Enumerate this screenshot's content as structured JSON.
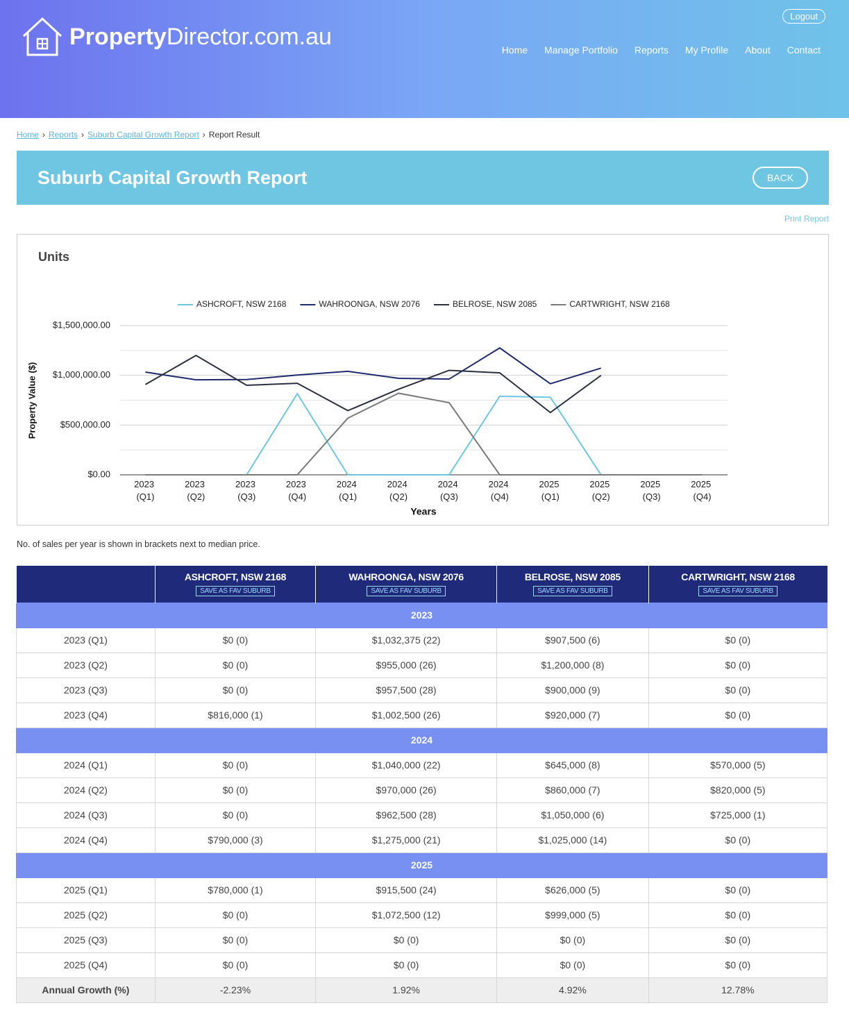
{
  "header": {
    "logo": {
      "bold": "Property",
      "rest": "Director.com.au"
    },
    "logout": "Logout",
    "nav": [
      "Home",
      "Manage Portfolio",
      "Reports",
      "My Profile",
      "About",
      "Contact"
    ]
  },
  "breadcrumb": {
    "links": [
      "Home",
      "Reports",
      "Suburb Capital Growth Report"
    ],
    "current": "Report Result"
  },
  "banner": {
    "title": "Suburb Capital Growth Report",
    "back": "BACK"
  },
  "print": "Print Report",
  "chart_data": {
    "type": "line",
    "title": "Units",
    "xlabel": "Years",
    "ylabel": "Property Value ($)",
    "categories": [
      "2023 (Q1)",
      "2023 (Q2)",
      "2023 (Q3)",
      "2023 (Q4)",
      "2024 (Q1)",
      "2024 (Q2)",
      "2024 (Q3)",
      "2024 (Q4)",
      "2025 (Q1)",
      "2025 (Q2)",
      "2025 (Q3)",
      "2025 (Q4)"
    ],
    "series": [
      {
        "name": "ASHCROFT, NSW 2168",
        "color": "#6ec6e0",
        "values": [
          0,
          0,
          0,
          816000,
          0,
          0,
          0,
          790000,
          780000,
          0,
          0,
          0
        ]
      },
      {
        "name": "WAHROONGA, NSW 2076",
        "color": "#1f2a6e",
        "values": [
          1032375,
          955000,
          957500,
          1002500,
          1040000,
          970000,
          962500,
          1275000,
          915500,
          1072500,
          null,
          null
        ]
      },
      {
        "name": "BELROSE, NSW 2085",
        "color": "#2b303d",
        "values": [
          907500,
          1200000,
          900000,
          920000,
          645000,
          860000,
          1050000,
          1025000,
          626000,
          999000,
          null,
          null
        ]
      },
      {
        "name": "CARTWRIGHT, NSW 2168",
        "color": "#7a7a7a",
        "values": [
          0,
          0,
          0,
          0,
          570000,
          820000,
          725000,
          0,
          0,
          0,
          0,
          0
        ]
      }
    ],
    "ylim": [
      0,
      1500000
    ],
    "yticks": [
      {
        "value": 0,
        "label": "$0.00"
      },
      {
        "value": 500000,
        "label": "$500,000.00"
      },
      {
        "value": 1000000,
        "label": "$1,000,000.00"
      },
      {
        "value": 1500000,
        "label": "$1,500,000.00"
      }
    ],
    "minor_yticks": [
      250000,
      750000,
      1250000
    ],
    "grid": true,
    "legend": "top"
  },
  "note": "No. of sales per year is shown in brackets next to median price.",
  "table": {
    "columns": [
      {
        "name": "ASHCROFT, NSW 2168",
        "button": "SAVE AS FAV SUBURB"
      },
      {
        "name": "WAHROONGA, NSW 2076",
        "button": "SAVE AS FAV SUBURB"
      },
      {
        "name": "BELROSE, NSW 2085",
        "button": "SAVE AS FAV SUBURB"
      },
      {
        "name": "CARTWRIGHT, NSW 2168",
        "button": "SAVE AS FAV SUBURB"
      }
    ],
    "groups": [
      {
        "label": "2023",
        "rows": [
          [
            "2023 (Q1)",
            "$0 (0)",
            "$1,032,375 (22)",
            "$907,500 (6)",
            "$0 (0)"
          ],
          [
            "2023 (Q2)",
            "$0 (0)",
            "$955,000 (26)",
            "$1,200,000 (8)",
            "$0 (0)"
          ],
          [
            "2023 (Q3)",
            "$0 (0)",
            "$957,500 (28)",
            "$900,000 (9)",
            "$0 (0)"
          ],
          [
            "2023 (Q4)",
            "$816,000 (1)",
            "$1,002,500 (26)",
            "$920,000 (7)",
            "$0 (0)"
          ]
        ]
      },
      {
        "label": "2024",
        "rows": [
          [
            "2024 (Q1)",
            "$0 (0)",
            "$1,040,000 (22)",
            "$645,000 (8)",
            "$570,000 (5)"
          ],
          [
            "2024 (Q2)",
            "$0 (0)",
            "$970,000 (26)",
            "$860,000 (7)",
            "$820,000 (5)"
          ],
          [
            "2024 (Q3)",
            "$0 (0)",
            "$962,500 (28)",
            "$1,050,000 (6)",
            "$725,000 (1)"
          ],
          [
            "2024 (Q4)",
            "$790,000 (3)",
            "$1,275,000 (21)",
            "$1,025,000 (14)",
            "$0 (0)"
          ]
        ]
      },
      {
        "label": "2025",
        "rows": [
          [
            "2025 (Q1)",
            "$780,000 (1)",
            "$915,500 (24)",
            "$626,000 (5)",
            "$0 (0)"
          ],
          [
            "2025 (Q2)",
            "$0 (0)",
            "$1,072,500 (12)",
            "$999,000 (5)",
            "$0 (0)"
          ],
          [
            "2025 (Q3)",
            "$0 (0)",
            "$0 (0)",
            "$0 (0)",
            "$0 (0)"
          ],
          [
            "2025 (Q4)",
            "$0 (0)",
            "$0 (0)",
            "$0 (0)",
            "$0 (0)"
          ]
        ]
      }
    ],
    "footer": [
      "Annual Growth (%)",
      "-2.23%",
      "1.92%",
      "4.92%",
      "12.78%"
    ]
  }
}
